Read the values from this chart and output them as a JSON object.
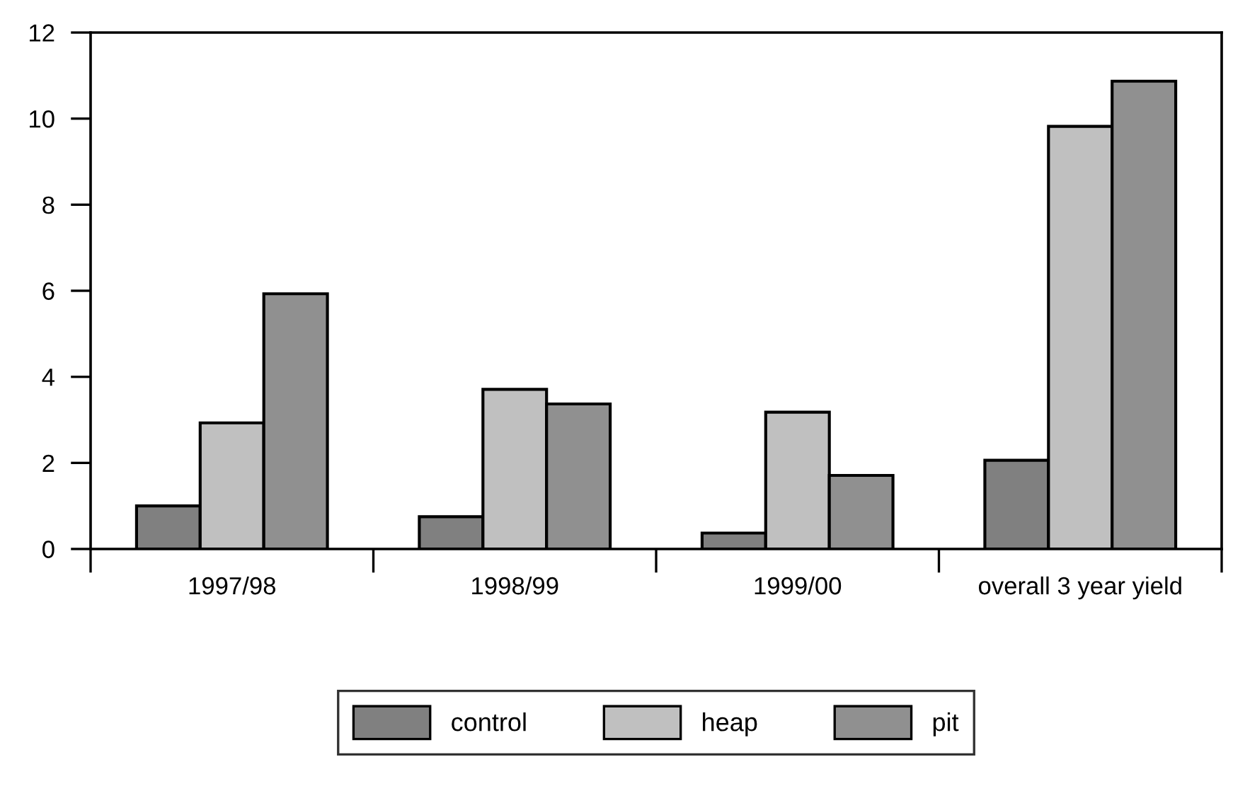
{
  "chart_data": {
    "type": "bar",
    "categories": [
      "1997/98",
      "1998/99",
      "1999/00",
      "overall 3 year yield"
    ],
    "series": [
      {
        "name": "control",
        "color": "#808080",
        "values": [
          1.0,
          0.75,
          0.37,
          2.06
        ]
      },
      {
        "name": "heap",
        "color": "#c0c0c0",
        "values": [
          2.93,
          3.71,
          3.18,
          9.82
        ]
      },
      {
        "name": "pit",
        "color": "#909090",
        "values": [
          5.93,
          3.37,
          1.71,
          10.87
        ]
      }
    ],
    "ylim": [
      0,
      12
    ],
    "yticks": [
      0,
      2,
      4,
      6,
      8,
      10,
      12
    ],
    "grid": false,
    "legend": "bottom"
  }
}
